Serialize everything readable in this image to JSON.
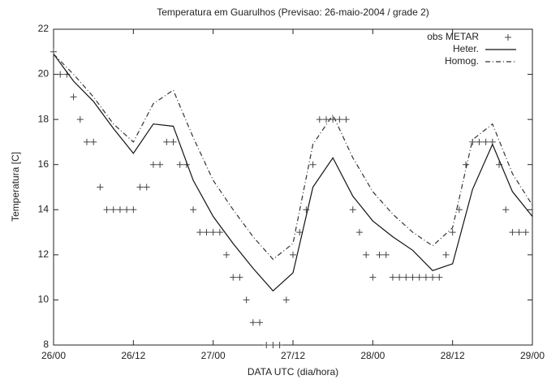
{
  "chart_data": {
    "type": "line",
    "title": "Temperatura em Guarulhos (Previsao: 26-maio-2004 / grade 2)",
    "xlabel": "DATA UTC (dia/hora)",
    "ylabel": "Temperatura [C]",
    "xlim": [
      0,
      72
    ],
    "ylim": [
      8,
      22
    ],
    "xticks": [
      {
        "value": 0,
        "label": "26/00"
      },
      {
        "value": 12,
        "label": "26/12"
      },
      {
        "value": 24,
        "label": "27/00"
      },
      {
        "value": 36,
        "label": "27/12"
      },
      {
        "value": 48,
        "label": "28/00"
      },
      {
        "value": 60,
        "label": "28/12"
      },
      {
        "value": 72,
        "label": "29/00"
      }
    ],
    "yticks": [
      8,
      10,
      12,
      14,
      16,
      18,
      20,
      22
    ],
    "legend": "upper right",
    "grid": false,
    "series": [
      {
        "name": "obs METAR",
        "color": "#444444",
        "style": "points",
        "x": [
          0,
          1,
          2,
          3,
          4,
          5,
          6,
          7,
          8,
          9,
          10,
          11,
          12,
          13,
          14,
          15,
          16,
          17,
          18,
          19,
          20,
          21,
          22,
          23,
          24,
          25,
          26,
          27,
          28,
          29,
          30,
          31,
          32,
          33,
          34,
          35,
          36,
          37,
          38,
          39,
          40,
          41,
          42,
          43,
          44,
          45,
          46,
          47,
          48,
          49,
          50,
          51,
          52,
          53,
          54,
          55,
          56,
          57,
          58,
          59,
          60,
          61,
          62,
          63,
          64,
          65,
          66,
          67,
          68,
          69,
          70,
          71
        ],
        "values": [
          21,
          20,
          20,
          19,
          18,
          17,
          17,
          15,
          14,
          14,
          14,
          14,
          14,
          15,
          15,
          16,
          16,
          17,
          17,
          16,
          16,
          14,
          13,
          13,
          13,
          13,
          12,
          11,
          11,
          10,
          9,
          9,
          8,
          8,
          8,
          10,
          12,
          13,
          14,
          16,
          18,
          18,
          18,
          18,
          18,
          14,
          13,
          12,
          11,
          12,
          12,
          11,
          11,
          11,
          11,
          11,
          11,
          11,
          11,
          12,
          13,
          14,
          16,
          17,
          17,
          17,
          17,
          16,
          14,
          13,
          13,
          13
        ]
      },
      {
        "name": "Heter.",
        "color": "#111111",
        "style": "solid",
        "x": [
          0,
          3,
          6,
          9,
          12,
          15,
          18,
          21,
          24,
          27,
          30,
          33,
          36,
          39,
          42,
          45,
          48,
          51,
          54,
          57,
          60,
          63,
          66,
          69,
          72
        ],
        "values": [
          20.9,
          19.7,
          18.8,
          17.6,
          16.5,
          17.8,
          17.7,
          15.3,
          13.7,
          12.5,
          11.4,
          10.4,
          11.2,
          15.0,
          16.3,
          14.6,
          13.5,
          12.8,
          12.2,
          11.3,
          11.6,
          14.9,
          16.9,
          14.8,
          13.7
        ]
      },
      {
        "name": "Homog.",
        "color": "#333333",
        "style": "dashdot",
        "x": [
          0,
          3,
          6,
          9,
          12,
          15,
          18,
          21,
          24,
          27,
          30,
          33,
          36,
          39,
          42,
          45,
          48,
          51,
          54,
          57,
          60,
          63,
          66,
          69,
          72
        ],
        "values": [
          20.9,
          20.0,
          19.0,
          17.8,
          17.0,
          18.7,
          19.3,
          17.2,
          15.3,
          14.0,
          12.8,
          11.8,
          12.5,
          16.9,
          18.2,
          16.3,
          14.8,
          13.8,
          13.0,
          12.4,
          13.2,
          17.1,
          17.8,
          15.6,
          14.2
        ]
      }
    ]
  }
}
